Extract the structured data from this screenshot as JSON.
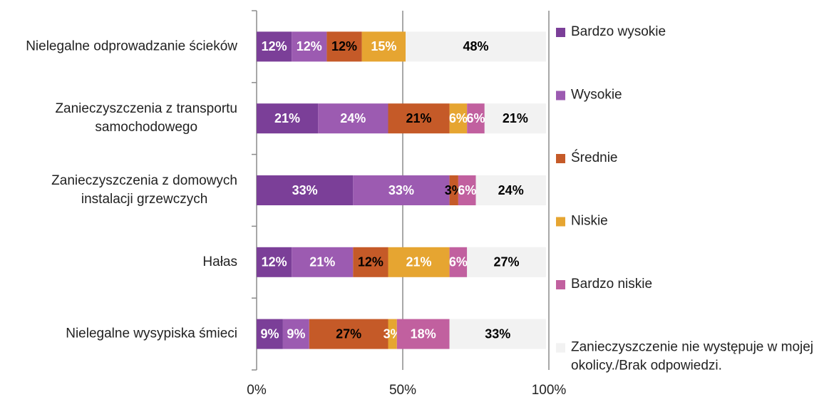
{
  "chart_data": {
    "type": "stacked_barh",
    "categories": [
      "Nielegalne odprowadzanie ścieków",
      "Zanieczyszczenia z transportu samochodowego",
      "Zanieczyszczenia z domowych instalacji grzewczych",
      "Hałas",
      "Nielegalne wysypiska śmieci"
    ],
    "series": [
      {
        "name": "Bardzo wysokie",
        "color": "#7b3f98",
        "label_color": "#ffffff",
        "values": [
          12,
          21,
          33,
          12,
          9
        ],
        "value_labels": [
          "12%",
          "21%",
          "33%",
          "12%",
          "9%"
        ]
      },
      {
        "name": "Wysokie",
        "color": "#9c5bb1",
        "label_color": "#ffffff",
        "values": [
          12,
          24,
          33,
          21,
          9
        ],
        "value_labels": [
          "12%",
          "24%",
          "33%",
          "21%",
          "9%"
        ]
      },
      {
        "name": "Średnie",
        "color": "#c55a28",
        "label_color": "#000000",
        "values": [
          12,
          21,
          3,
          12,
          27
        ],
        "value_labels": [
          "12%",
          "21%",
          "3%",
          "12%",
          "27%"
        ]
      },
      {
        "name": "Niskie",
        "color": "#e6a531",
        "label_color": "#ffffff",
        "values": [
          15,
          6,
          null,
          21,
          3
        ],
        "value_labels": [
          "15%",
          "6%",
          null,
          "21%",
          "3%"
        ]
      },
      {
        "name": "Bardzo niskie",
        "color": "#c1609f",
        "label_color": "#ffffff",
        "values": [
          null,
          6,
          6,
          6,
          18
        ],
        "value_labels": [
          null,
          "6%",
          "6%",
          "6%",
          "18%"
        ]
      },
      {
        "name": "Zanieczyszczenie nie występuje w mojej okolicy./Brak odpowiedzi.",
        "color": "#f2f2f2",
        "label_color": "#000000",
        "values": [
          48,
          21,
          24,
          27,
          33
        ],
        "value_labels": [
          "48%",
          "21%",
          "24%",
          "27%",
          "33%"
        ]
      }
    ],
    "xlim": [
      0,
      100
    ],
    "xticks": [
      {
        "value": 0,
        "label": "0%"
      },
      {
        "value": 50,
        "label": "50%"
      },
      {
        "value": 100,
        "label": "100%"
      }
    ],
    "grid": true,
    "legend": "right"
  }
}
